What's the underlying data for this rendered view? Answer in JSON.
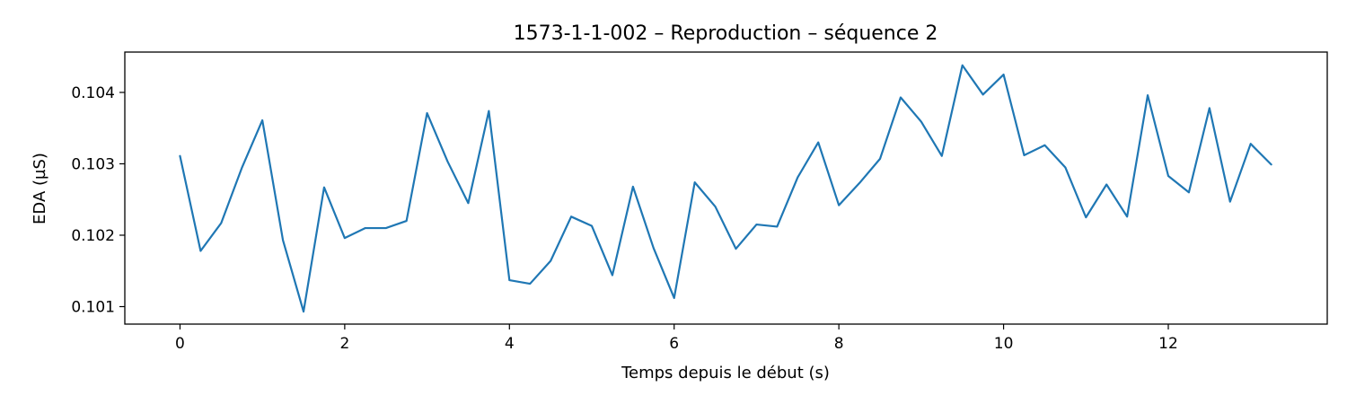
{
  "chart_data": {
    "type": "line",
    "title": "1573-1-1-002 – Reproduction – séquence 2",
    "xlabel": "Temps depuis le début (s)",
    "ylabel": "EDA (µS)",
    "xlim": [
      -0.67,
      13.93
    ],
    "ylim": [
      0.100755,
      0.104565
    ],
    "xticks": [
      0,
      2,
      4,
      6,
      8,
      10,
      12
    ],
    "xtick_labels": [
      "0",
      "2",
      "4",
      "6",
      "8",
      "10",
      "12"
    ],
    "yticks": [
      0.101,
      0.102,
      0.103,
      0.104
    ],
    "ytick_labels": [
      "0.101",
      "0.102",
      "0.103",
      "0.104"
    ],
    "grid": false,
    "series": [
      {
        "name": "EDA",
        "color": "#1f77b4",
        "x": [
          0,
          0.25,
          0.5,
          0.75,
          1,
          1.25,
          1.5,
          1.75,
          2,
          2.25,
          2.5,
          2.75,
          3,
          3.25,
          3.5,
          3.75,
          4,
          4.25,
          4.5,
          4.75,
          5,
          5.25,
          5.5,
          5.75,
          6,
          6.25,
          6.5,
          6.75,
          7,
          7.25,
          7.5,
          7.75,
          8,
          8.25,
          8.5,
          8.75,
          9,
          9.25,
          9.5,
          9.75,
          10,
          10.25,
          10.5,
          10.75,
          11,
          11.25,
          11.5,
          11.75,
          12,
          12.25,
          12.5,
          12.75,
          13,
          13.25
        ],
        "values": [
          0.10311,
          0.10178,
          0.10217,
          0.10294,
          0.10361,
          0.10193,
          0.10093,
          0.10267,
          0.10196,
          0.1021,
          0.1021,
          0.1022,
          0.10371,
          0.10303,
          0.10245,
          0.10374,
          0.10137,
          0.10132,
          0.10164,
          0.10226,
          0.10213,
          0.10144,
          0.10268,
          0.10182,
          0.10112,
          0.10274,
          0.1024,
          0.10181,
          0.10215,
          0.10212,
          0.10281,
          0.1033,
          0.10242,
          0.10273,
          0.10307,
          0.10393,
          0.10359,
          0.10311,
          0.10438,
          0.10397,
          0.10425,
          0.10312,
          0.10326,
          0.10295,
          0.10225,
          0.10271,
          0.10226,
          0.10396,
          0.10283,
          0.1026,
          0.10378,
          0.10247,
          0.10328,
          0.10299
        ]
      }
    ]
  }
}
